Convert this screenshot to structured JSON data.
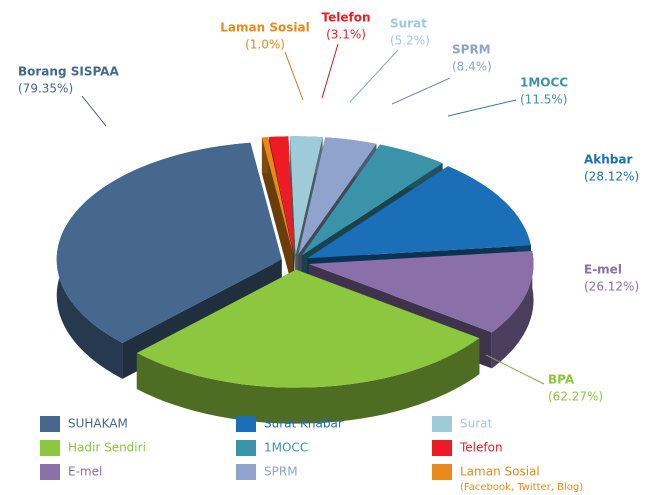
{
  "chart_data": {
    "type": "pie",
    "categories": [
      "Laman Sosial",
      "Telefon",
      "Surat",
      "SPRM",
      "1MOCC",
      "Akhbar",
      "E-mel",
      "BPA",
      "Borang SISPAA"
    ],
    "values": [
      1.0,
      3.1,
      5.2,
      8.4,
      11.5,
      28.12,
      26.12,
      62.27,
      79.35
    ],
    "value_labels": [
      "(1.0%)",
      "(3.1%)",
      "(5.2%)",
      "(8.4%)",
      "(11.5%)",
      "(28.12%)",
      "(26.12%)",
      "(62.27%)",
      "(79.35%)"
    ],
    "colors": [
      "#e8891a",
      "#ed1c24",
      "#9fcbd9",
      "#8fa3cc",
      "#3a93a8",
      "#1a6fb8",
      "#8a6fa8",
      "#8dc63f",
      "#46688f"
    ],
    "legend": [
      {
        "label": "SUHAKAM",
        "color": "#46688f"
      },
      {
        "label": "Surat Khabar",
        "color": "#1a6fb8"
      },
      {
        "label": "Surat",
        "color": "#9fcbd9"
      },
      {
        "label": "Hadir Sendiri",
        "color": "#8dc63f"
      },
      {
        "label": "1MOCC",
        "color": "#3a93a8"
      },
      {
        "label": "Telefon",
        "color": "#ed1c24"
      },
      {
        "label": "E-mel",
        "color": "#8a6fa8"
      },
      {
        "label": "SPRM",
        "color": "#8fa3cc"
      },
      {
        "label": "Laman Sosial",
        "sublabel": "(Facebook, Twitter, Blog)",
        "color": "#e8891a"
      }
    ]
  }
}
